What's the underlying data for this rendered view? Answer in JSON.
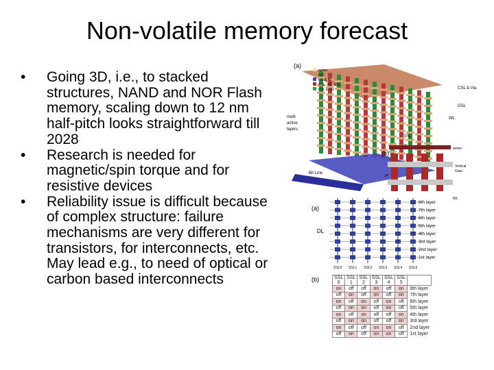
{
  "slide": {
    "title": "Non-volatile memory forecast",
    "bullets": [
      "Going 3D, i.e., to stacked structures, NAND and NOR Flash memory, scaling down to 12 nm half-pitch looks straightforward till 2028",
      "Research is needed for magnetic/spin torque and for resistive devices",
      "Reliability issue is difficult because of complex structure: failure mechanisms are very different for transistors, for interconnects, etc. May lead e.g., to need of optical or carbon based interconnects"
    ],
    "bullet_symbol": "•"
  },
  "figure_top": {
    "panel_a": "(a)",
    "panel_b": "(b)",
    "legend": [
      "active",
      "ILD",
      "I.X. & HI",
      "SSL, WL, GSL",
      "CSL & Via"
    ],
    "labels": {
      "csl_via": "CSL & Via",
      "gsl": "GSL",
      "wl": "WL",
      "ssl": "SSL",
      "multi_active": [
        "multi",
        "active",
        "layers"
      ],
      "bit_line": "Bit Line",
      "active": "active",
      "f2": "2F",
      "vertical_gate": [
        "Vertical",
        "Gate"
      ],
      "wl2": "WL"
    }
  },
  "figure_bottom": {
    "panel_a": "(a)",
    "panel_b": "(b)",
    "dl": "DL",
    "layers": [
      "8th layer",
      "7th layer",
      "6th layer",
      "5th layer",
      "4th layer",
      "3rd layer",
      "2nd layer",
      "1st layer"
    ],
    "ssl_labels": [
      "SSL0",
      "SSL1",
      "SSL2",
      "SSL3",
      "SSL4",
      "SSL5"
    ],
    "table": {
      "header_top": [
        "SSL",
        "SSL",
        "SSL",
        "SSL",
        "SSL",
        "SSL"
      ],
      "header_num": [
        "0",
        "1",
        "2",
        "3",
        "4",
        "5"
      ],
      "rows": [
        [
          "on",
          "off",
          "off",
          "on",
          "off",
          "on",
          "8th layer"
        ],
        [
          "off",
          "on",
          "off",
          "on",
          "off",
          "on",
          "7th layer"
        ],
        [
          "on",
          "off",
          "on",
          "off",
          "on",
          "off",
          "6th layer"
        ],
        [
          "off",
          "on",
          "on",
          "off",
          "on",
          "off",
          "5th layer"
        ],
        [
          "on",
          "off",
          "on",
          "off",
          "off",
          "on",
          "4th layer"
        ],
        [
          "off",
          "on",
          "on",
          "off",
          "off",
          "on",
          "3rd layer"
        ],
        [
          "on",
          "off",
          "off",
          "on",
          "on",
          "off",
          "2nd layer"
        ],
        [
          "off",
          "on",
          "off",
          "on",
          "on",
          "off",
          "1st layer"
        ]
      ]
    }
  }
}
